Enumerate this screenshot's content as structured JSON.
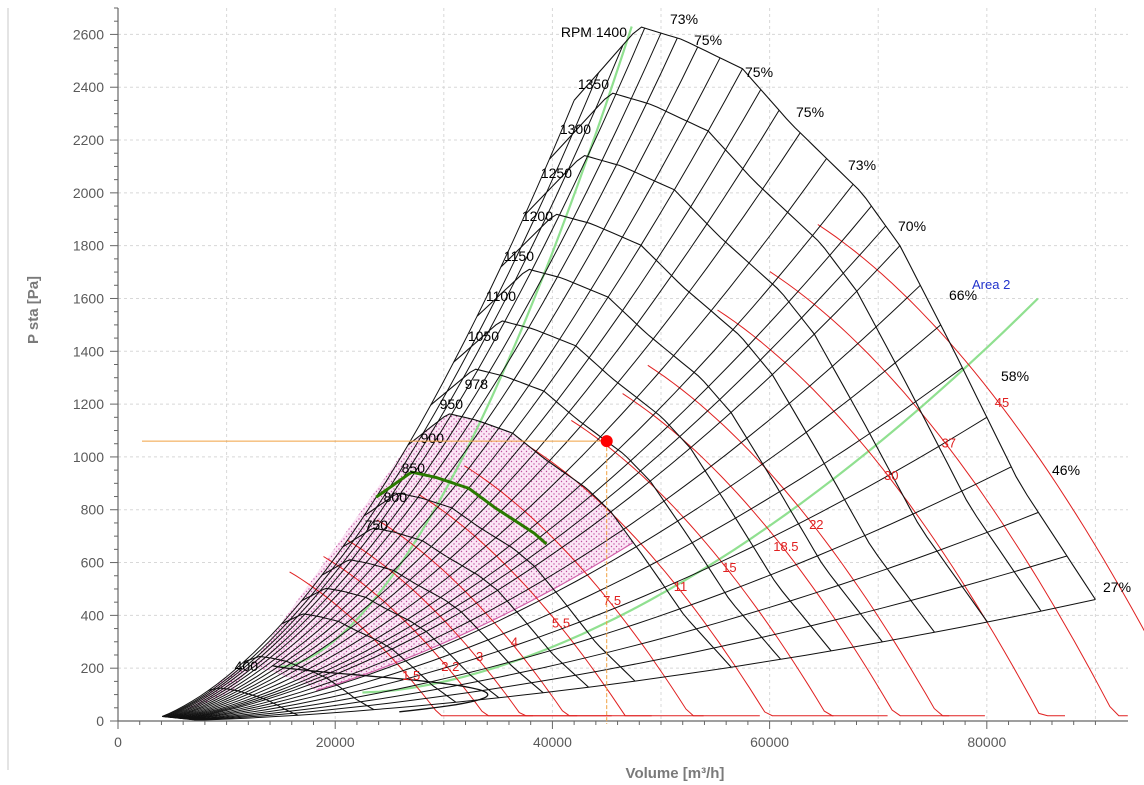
{
  "chart_data": {
    "type": "fan-performance-map",
    "xlabel": "Volume [m³/h]",
    "ylabel": "P sta [Pa]",
    "xlim": [
      0,
      93000
    ],
    "ylim": [
      0,
      2700
    ],
    "xticks": [
      0,
      20000,
      40000,
      60000,
      80000
    ],
    "yticks": [
      0,
      200,
      400,
      600,
      800,
      1000,
      1200,
      1400,
      1600,
      1800,
      2000,
      2200,
      2400,
      2600
    ],
    "grid": true,
    "rpm_curves": [
      {
        "label": "RPM 1400",
        "rpm": 1400
      },
      {
        "label": "1350",
        "rpm": 1350
      },
      {
        "label": "1300",
        "rpm": 1300
      },
      {
        "label": "1250",
        "rpm": 1250
      },
      {
        "label": "1200",
        "rpm": 1200
      },
      {
        "label": "1150",
        "rpm": 1150
      },
      {
        "label": "1100",
        "rpm": 1100
      },
      {
        "label": "1050",
        "rpm": 1050
      },
      {
        "label": "978",
        "rpm": 978
      },
      {
        "label": "950",
        "rpm": 950
      },
      {
        "label": "900",
        "rpm": 900
      },
      {
        "label": "850",
        "rpm": 850
      },
      {
        "label": "800",
        "rpm": 800
      },
      {
        "label": "750",
        "rpm": 750
      },
      {
        "label": "400",
        "rpm": 400
      }
    ],
    "efficiency_lines": [
      {
        "label": "73%",
        "t": 0.0
      },
      {
        "label": "75%",
        "t": 0.12
      },
      {
        "label": "75%",
        "t": 0.24
      },
      {
        "label": "75%",
        "t": 0.36
      },
      {
        "label": "73%",
        "t": 0.48
      },
      {
        "label": "70%",
        "t": 0.6
      },
      {
        "label": "66%",
        "t": 0.73
      },
      {
        "label": "58%",
        "t": 0.845
      },
      {
        "label": "46%",
        "t": 0.93
      },
      {
        "label": "27%",
        "t": 1.0
      }
    ],
    "power_labels": [
      {
        "label": "1.5",
        "x": 27000,
        "y": 155
      },
      {
        "label": "2.2",
        "x": 30600,
        "y": 190
      },
      {
        "label": "3",
        "x": 33300,
        "y": 228
      },
      {
        "label": "4",
        "x": 36500,
        "y": 282
      },
      {
        "label": "5.5",
        "x": 40800,
        "y": 355
      },
      {
        "label": "7.5",
        "x": 45500,
        "y": 440
      },
      {
        "label": "11",
        "x": 51800,
        "y": 493
      },
      {
        "label": "15",
        "x": 56300,
        "y": 565
      },
      {
        "label": "18.5",
        "x": 61500,
        "y": 643
      },
      {
        "label": "22",
        "x": 64300,
        "y": 727
      },
      {
        "label": "30",
        "x": 71200,
        "y": 913
      },
      {
        "label": "37",
        "x": 76500,
        "y": 1035
      },
      {
        "label": "45",
        "x": 81400,
        "y": 1190
      }
    ],
    "system_curves": [
      {
        "from": [
          15000,
          205
        ],
        "to": [
          47300,
          2630
        ],
        "name": ""
      },
      {
        "from": [
          22500,
          108
        ],
        "to": [
          84700,
          1600
        ],
        "name": "Area 2"
      }
    ],
    "operating_point": {
      "x": 45000,
      "y": 1060,
      "rpm": 978
    }
  },
  "colors": {
    "grid": "#d8d8d8",
    "curve": "#000000",
    "power": "#e02020",
    "system": "#90e090",
    "selected_rpm": "#2a7a00",
    "region_fill": "#f8e0f2",
    "region_edge": "#d060a8",
    "point": "#ff0000",
    "crosshair": "#f0a040"
  }
}
